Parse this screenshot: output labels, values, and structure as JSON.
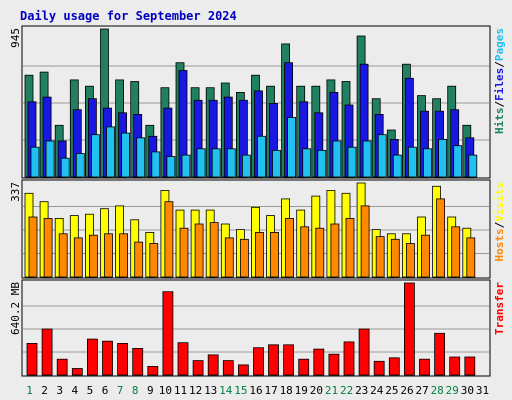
{
  "title": "Daily usage for September 2024",
  "days": [
    "1",
    "2",
    "3",
    "4",
    "5",
    "6",
    "7",
    "8",
    "9",
    "10",
    "11",
    "12",
    "13",
    "14",
    "15",
    "16",
    "17",
    "18",
    "19",
    "20",
    "21",
    "22",
    "23",
    "24",
    "25",
    "26",
    "27",
    "28",
    "29",
    "30",
    "31"
  ],
  "weekend_days": [
    "1",
    "7",
    "8",
    "14",
    "15",
    "21",
    "22",
    "28",
    "29"
  ],
  "colors": {
    "title": "#0000c0",
    "background": "#ececec",
    "panel": "#ececec",
    "hits": "#208060",
    "files": "#1818e0",
    "pages": "#20c0f0",
    "visits": "#ffff00",
    "hosts": "#ff8800",
    "transfer": "#ff0000",
    "weekday_label": "#000000",
    "weekend_label": "#008040"
  },
  "chart_data": [
    {
      "type": "bar",
      "panel": "traffic",
      "y_max_label": "945",
      "legend": [
        {
          "text": "Hits",
          "color": "#208060"
        },
        {
          "text": "/",
          "color": "#000000"
        },
        {
          "text": "Files",
          "color": "#1818e0"
        },
        {
          "text": "/",
          "color": "#000000"
        },
        {
          "text": "Pages",
          "color": "#20c0f0"
        }
      ],
      "ylim": [
        0,
        945
      ],
      "series": [
        {
          "name": "Hits",
          "values": [
            650,
            670,
            330,
            620,
            580,
            945,
            620,
            610,
            330,
            570,
            730,
            570,
            570,
            600,
            540,
            650,
            580,
            850,
            580,
            580,
            620,
            610,
            900,
            500,
            300,
            720,
            520,
            500,
            580,
            330,
            0
          ]
        },
        {
          "name": "Files",
          "values": [
            480,
            510,
            230,
            430,
            500,
            440,
            410,
            400,
            260,
            440,
            680,
            490,
            490,
            510,
            490,
            550,
            470,
            730,
            480,
            410,
            540,
            460,
            720,
            400,
            240,
            630,
            420,
            420,
            430,
            250,
            0
          ]
        },
        {
          "name": "Pages",
          "values": [
            190,
            230,
            120,
            150,
            270,
            320,
            280,
            250,
            160,
            130,
            140,
            180,
            180,
            180,
            140,
            260,
            170,
            380,
            180,
            170,
            230,
            190,
            230,
            270,
            140,
            190,
            180,
            240,
            200,
            140,
            0
          ]
        }
      ]
    },
    {
      "type": "bar",
      "panel": "visits",
      "y_max_label": "337",
      "legend": [
        {
          "text": "Hosts",
          "color": "#ff8800"
        },
        {
          "text": "/",
          "color": "#000000"
        },
        {
          "text": "Visits",
          "color": "#ffff00"
        }
      ],
      "ylim": [
        0,
        337
      ],
      "series": [
        {
          "name": "Visits",
          "values": [
            300,
            270,
            210,
            220,
            225,
            245,
            255,
            205,
            160,
            310,
            240,
            240,
            240,
            190,
            170,
            250,
            220,
            280,
            240,
            290,
            310,
            300,
            337,
            170,
            155,
            155,
            215,
            325,
            215,
            175,
            0
          ]
        },
        {
          "name": "Hosts",
          "values": [
            215,
            210,
            155,
            140,
            150,
            155,
            155,
            125,
            120,
            270,
            175,
            190,
            195,
            140,
            135,
            160,
            160,
            210,
            180,
            175,
            190,
            210,
            255,
            145,
            135,
            120,
            150,
            280,
            180,
            140,
            0
          ]
        }
      ]
    },
    {
      "type": "bar",
      "panel": "transfer",
      "y_max_label": "640.2 MB",
      "legend": [
        {
          "text": "Transfer",
          "color": "#ff0000"
        }
      ],
      "ylim": [
        0,
        640.2
      ],
      "series": [
        {
          "name": "Transfer",
          "values": [
            220,
            320,
            110,
            45,
            250,
            235,
            220,
            185,
            60,
            580,
            225,
            100,
            140,
            100,
            70,
            190,
            210,
            210,
            110,
            180,
            145,
            230,
            320,
            95,
            120,
            640,
            110,
            290,
            125,
            125,
            0
          ]
        }
      ]
    }
  ]
}
